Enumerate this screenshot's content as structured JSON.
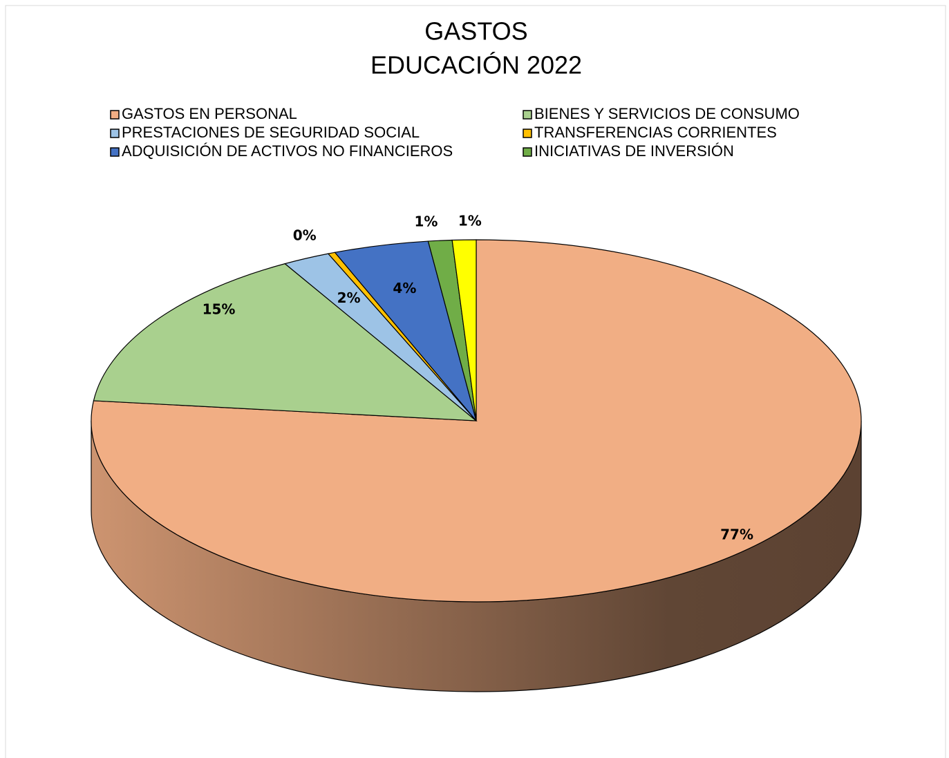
{
  "chart_data": {
    "type": "pie3d",
    "title": [
      "GASTOS",
      "EDUCACIÓN 2022"
    ],
    "categories": [
      "GASTOS EN PERSONAL",
      "BIENES Y SERVICIOS DE CONSUMO",
      "PRESTACIONES DE SEGURIDAD SOCIAL",
      "TRANSFERENCIAS CORRIENTES",
      "ADQUISICIÓN DE ACTIVOS NO FINANCIEROS",
      "INICIATIVAS DE INVERSIÓN",
      null
    ],
    "values": [
      77,
      15,
      2,
      0.3,
      4,
      1,
      1
    ],
    "value_labels": [
      "77%",
      "15%",
      "2%",
      "0%",
      "4%",
      "1%",
      "1%"
    ],
    "colors": [
      "#f1ae84",
      "#a9d08e",
      "#9dc3e6",
      "#ffc000",
      "#4472c4",
      "#70ad47",
      "#ffff00"
    ]
  }
}
